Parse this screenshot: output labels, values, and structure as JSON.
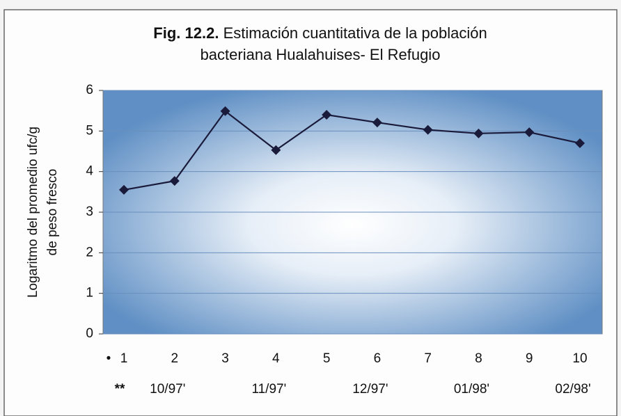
{
  "chart_data": {
    "type": "line",
    "title_prefix": "Fig. 12.2.",
    "title_lines": [
      "Estimación cuantitativa de la población",
      "bacteriana Hualahuises- El Refugio"
    ],
    "y_label_lines": [
      "Logaritmo del promedio ufc/g",
      "de peso fresco"
    ],
    "category_marker": "•",
    "categories": [
      "1",
      "2",
      "3",
      "4",
      "5",
      "6",
      "7",
      "8",
      "9",
      "10"
    ],
    "date_marker": "**",
    "date_labels": [
      null,
      "10/97'",
      null,
      "11/97'",
      null,
      "12/97'",
      null,
      "01/98'",
      null,
      "02/98'"
    ],
    "series": [
      {
        "color": "#1a1a3a",
        "values": [
          3.55,
          3.77,
          5.49,
          4.53,
          5.4,
          5.21,
          5.03,
          4.94,
          4.97,
          4.7
        ]
      }
    ],
    "ylim": [
      0,
      6
    ],
    "yticks": [
      0,
      1,
      2,
      3,
      4,
      5,
      6
    ],
    "grid": true
  }
}
